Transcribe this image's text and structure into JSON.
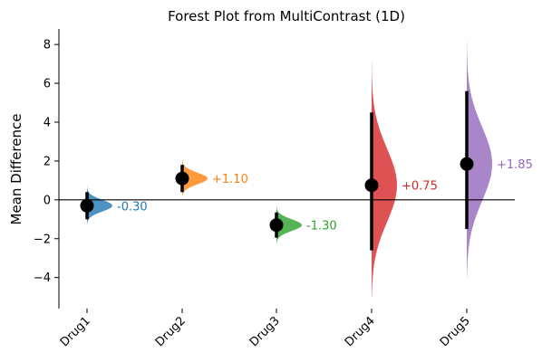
{
  "chart_data": {
    "type": "forest",
    "title": "Forest Plot from MultiContrast (1D)",
    "xlabel": "",
    "ylabel": "Mean Difference",
    "ylim": [
      -5.6,
      8.8
    ],
    "yticks": [
      -4,
      -2,
      0,
      2,
      4,
      6,
      8
    ],
    "zero_line": true,
    "categories": [
      "Drug1",
      "Drug2",
      "Drug3",
      "Drug4",
      "Drug5"
    ],
    "series": [
      {
        "category": "Drug1",
        "mean": -0.3,
        "ci_low": -1.0,
        "ci_high": 0.4,
        "dist_min": -1.4,
        "dist_max": 0.8,
        "dist_sd": 0.3,
        "label": "-0.30",
        "color": "#1f77b4"
      },
      {
        "category": "Drug2",
        "mean": 1.1,
        "ci_low": 0.4,
        "ci_high": 1.8,
        "dist_min": 0.2,
        "dist_max": 2.1,
        "dist_sd": 0.3,
        "label": "+1.10",
        "color": "#ff7f0e"
      },
      {
        "category": "Drug3",
        "mean": -1.3,
        "ci_low": -1.95,
        "ci_high": -0.65,
        "dist_min": -2.3,
        "dist_max": 0.0,
        "dist_sd": 0.3,
        "label": "-1.30",
        "color": "#2ca02c"
      },
      {
        "category": "Drug4",
        "mean": 0.75,
        "ci_low": -2.6,
        "ci_high": 4.5,
        "dist_min": -5.0,
        "dist_max": 7.2,
        "dist_sd": 1.9,
        "label": "+0.75",
        "color": "#d62728"
      },
      {
        "category": "Drug5",
        "mean": 1.85,
        "ci_low": -1.5,
        "ci_high": 5.6,
        "dist_min": -4.0,
        "dist_max": 8.2,
        "dist_sd": 1.9,
        "label": "+1.85",
        "color": "#9467bd"
      }
    ]
  }
}
